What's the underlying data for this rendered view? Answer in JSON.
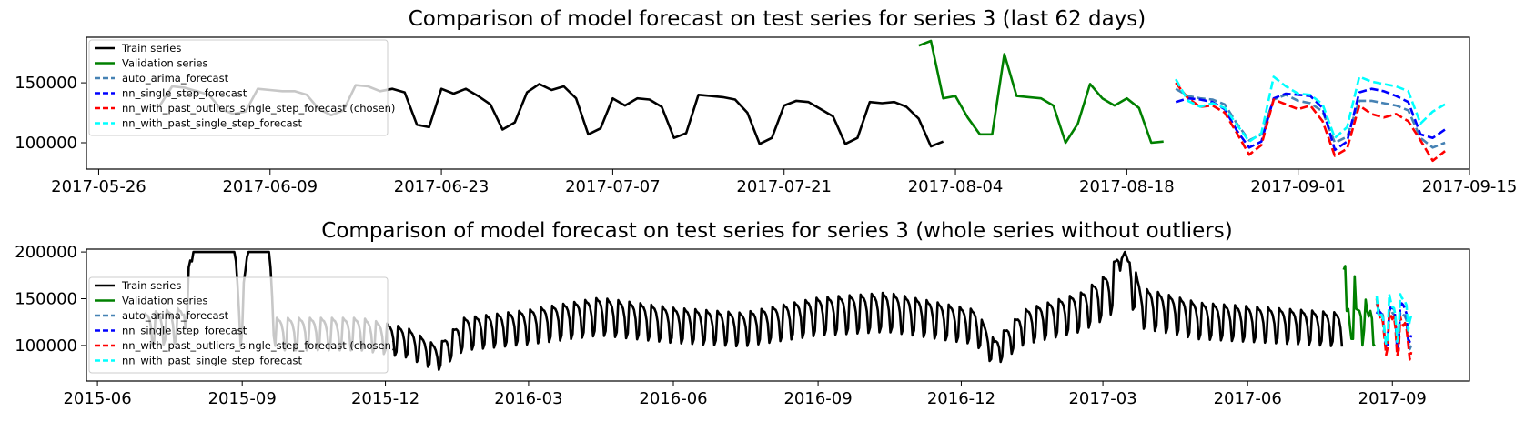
{
  "chart_data": [
    {
      "type": "line",
      "title": "Comparison of model forecast on test series for series 3 (last 62 days)",
      "xlabel": "",
      "ylabel": "",
      "xlim": [
        "2017-05-25",
        "2017-09-15"
      ],
      "ylim": [
        78000,
        188000
      ],
      "x_ticks": [
        "2017-05-26",
        "2017-06-09",
        "2017-06-23",
        "2017-07-07",
        "2017-07-21",
        "2017-08-04",
        "2017-08-18",
        "2017-09-01",
        "2017-09-15"
      ],
      "y_ticks": [
        100000,
        150000
      ],
      "y_tick_labels": [
        "100000",
        "150000"
      ],
      "legend": {
        "placement": "upper-left",
        "entries": [
          {
            "label": "Train series",
            "color": "#000000",
            "style": "solid"
          },
          {
            "label": "Validation series",
            "color": "#008000",
            "style": "solid"
          },
          {
            "label": "auto_arima_forecast",
            "color": "#4682b4",
            "style": "dashed"
          },
          {
            "label": "nn_single_step_forecast",
            "color": "#0000ff",
            "style": "dashed"
          },
          {
            "label": "nn_with_past_outliers_single_step_forecast (chosen)",
            "color": "#ff0000",
            "style": "dashed"
          },
          {
            "label": "nn_with_past_single_step_forecast",
            "color": "#00ffff",
            "style": "dashed"
          }
        ]
      },
      "series": [
        {
          "name": "Train series",
          "color": "#000000",
          "style": "solid",
          "start": "2017-05-31",
          "values": [
            131000,
            147000,
            146000,
            143000,
            140000,
            128000,
            124000,
            126000,
            145000,
            144000,
            143000,
            143000,
            140000,
            128000,
            123000,
            127000,
            148000,
            147000,
            143000,
            145000,
            142000,
            115000,
            113000,
            145000,
            141000,
            145000,
            139000,
            132000,
            111000,
            117000,
            142000,
            149000,
            144000,
            147000,
            137000,
            107000,
            112000,
            137000,
            131000,
            137000,
            136000,
            130000,
            104000,
            108000,
            140000,
            139000,
            138000,
            136000,
            125000,
            99000,
            104000,
            131000,
            135000,
            134000,
            128000,
            122000,
            99000,
            104000,
            134000,
            133000,
            134000,
            130000,
            120000,
            97000,
            101000
          ]
        },
        {
          "name": "Validation series",
          "color": "#008000",
          "style": "solid",
          "start": "2017-08-01",
          "values": [
            181000,
            185000,
            137000,
            139000,
            121000,
            107000,
            107000,
            174000,
            139000,
            138000,
            137000,
            131000,
            100000,
            116000,
            149000,
            137000,
            131000,
            137000,
            129000,
            100000,
            101000
          ]
        },
        {
          "name": "auto_arima_forecast",
          "color": "#4682b4",
          "style": "dashed",
          "start": "2017-08-22",
          "values": [
            145000,
            139000,
            137000,
            136000,
            132000,
            116000,
            102000,
            107000,
            136000,
            140000,
            135000,
            133000,
            126000,
            100000,
            105000,
            135000,
            135000,
            133000,
            131000,
            127000,
            104000,
            96000,
            100000
          ]
        },
        {
          "name": "nn_single_step_forecast",
          "color": "#0000ff",
          "style": "dashed",
          "start": "2017-08-22",
          "values": [
            134000,
            137000,
            136000,
            134000,
            128000,
            110000,
            96000,
            101000,
            137000,
            141000,
            140000,
            139000,
            129000,
            94000,
            101000,
            142000,
            145000,
            143000,
            139000,
            134000,
            107000,
            104000,
            111000
          ]
        },
        {
          "name": "nn_with_past_outliers_single_step_forecast (chosen)",
          "color": "#ff0000",
          "style": "dashed",
          "start": "2017-08-22",
          "values": [
            150000,
            137000,
            130000,
            131000,
            125000,
            108000,
            90000,
            98000,
            136000,
            132000,
            128000,
            131000,
            118000,
            89000,
            95000,
            131000,
            124000,
            121000,
            124000,
            118000,
            102000,
            85000,
            93000
          ]
        },
        {
          "name": "nn_with_past_single_step_forecast",
          "color": "#00ffff",
          "style": "dashed",
          "start": "2017-08-22",
          "values": [
            153000,
            135000,
            130000,
            133000,
            129000,
            115000,
            101000,
            108000,
            155000,
            147000,
            141000,
            140000,
            132000,
            104000,
            113000,
            155000,
            151000,
            149000,
            147000,
            143000,
            116000,
            126000,
            132000
          ]
        }
      ]
    },
    {
      "type": "line",
      "title": "Comparison of model forecast on test series for series 3 (whole series without outliers)",
      "xlabel": "",
      "ylabel": "",
      "xlim": [
        "2015-05-25",
        "2017-10-20"
      ],
      "ylim": [
        62000,
        203000
      ],
      "x_ticks": [
        "2015-06",
        "2015-09",
        "2015-12",
        "2016-03",
        "2016-06",
        "2016-09",
        "2016-12",
        "2017-03",
        "2017-06",
        "2017-09"
      ],
      "y_ticks": [
        100000,
        150000,
        200000
      ],
      "y_tick_labels": [
        "100000",
        "150000",
        "200000"
      ],
      "legend": {
        "placement": "center-left",
        "entries": [
          {
            "label": "Train series",
            "color": "#000000",
            "style": "solid"
          },
          {
            "label": "Validation series",
            "color": "#008000",
            "style": "solid"
          },
          {
            "label": "auto_arima_forecast",
            "color": "#4682b4",
            "style": "dashed"
          },
          {
            "label": "nn_single_step_forecast",
            "color": "#0000ff",
            "style": "dashed"
          },
          {
            "label": "nn_with_past_outliers_single_step_forecast (chosen)",
            "color": "#ff0000",
            "style": "dashed"
          },
          {
            "label": "nn_with_past_single_step_forecast",
            "color": "#00ffff",
            "style": "dashed"
          }
        ]
      },
      "series": [
        {
          "name": "Train series",
          "color": "#000000",
          "style": "solid",
          "start": "2015-07-01",
          "end": "2017-07-31",
          "weekly_pattern": [
            1.08,
            1.06,
            1.05,
            1.02,
            0.95,
            0.79,
            0.83
          ],
          "level_knots": [
            [
              "2015-07-01",
              125000
            ],
            [
              "2015-07-25",
              130000
            ],
            [
              "2015-08-01",
              200000
            ],
            [
              "2015-08-27",
              200000
            ],
            [
              "2015-08-31",
              125000
            ],
            [
              "2015-09-05",
              200000
            ],
            [
              "2015-09-18",
              200000
            ],
            [
              "2015-09-22",
              120000
            ],
            [
              "2015-11-15",
              120000
            ],
            [
              "2015-12-15",
              110000
            ],
            [
              "2016-01-03",
              92000
            ],
            [
              "2016-01-20",
              120000
            ],
            [
              "2016-03-01",
              128000
            ],
            [
              "2016-04-15",
              140000
            ],
            [
              "2016-06-01",
              130000
            ],
            [
              "2016-07-15",
              125000
            ],
            [
              "2016-09-01",
              140000
            ],
            [
              "2016-10-15",
              145000
            ],
            [
              "2016-12-10",
              128000
            ],
            [
              "2016-12-22",
              98000
            ],
            [
              "2017-01-10",
              128000
            ],
            [
              "2017-02-15",
              145000
            ],
            [
              "2017-03-05",
              165000
            ],
            [
              "2017-03-15",
              200000
            ],
            [
              "2017-03-25",
              150000
            ],
            [
              "2017-05-01",
              135000
            ],
            [
              "2017-07-31",
              125000
            ]
          ]
        },
        {
          "name": "Validation series",
          "color": "#008000",
          "style": "solid",
          "start": "2017-08-01",
          "values": [
            181000,
            185000,
            137000,
            139000,
            121000,
            107000,
            107000,
            174000,
            139000,
            138000,
            137000,
            131000,
            100000,
            116000,
            149000,
            137000,
            131000,
            137000,
            129000,
            100000,
            101000
          ]
        },
        {
          "name": "auto_arima_forecast",
          "color": "#4682b4",
          "style": "dashed",
          "start": "2017-08-22",
          "values": [
            145000,
            139000,
            137000,
            136000,
            132000,
            116000,
            102000,
            107000,
            136000,
            140000,
            135000,
            133000,
            126000,
            100000,
            105000,
            135000,
            135000,
            133000,
            131000,
            127000,
            104000,
            96000,
            100000
          ]
        },
        {
          "name": "nn_single_step_forecast",
          "color": "#0000ff",
          "style": "dashed",
          "start": "2017-08-22",
          "values": [
            134000,
            137000,
            136000,
            134000,
            128000,
            110000,
            96000,
            101000,
            137000,
            141000,
            140000,
            139000,
            129000,
            94000,
            101000,
            142000,
            145000,
            143000,
            139000,
            134000,
            107000,
            104000,
            111000
          ]
        },
        {
          "name": "nn_with_past_outliers_single_step_forecast (chosen)",
          "color": "#ff0000",
          "style": "dashed",
          "start": "2017-08-22",
          "values": [
            150000,
            137000,
            130000,
            131000,
            125000,
            108000,
            90000,
            98000,
            136000,
            132000,
            128000,
            131000,
            118000,
            89000,
            95000,
            131000,
            124000,
            121000,
            124000,
            118000,
            102000,
            85000,
            93000
          ]
        },
        {
          "name": "nn_with_past_single_step_forecast",
          "color": "#00ffff",
          "style": "dashed",
          "start": "2017-08-22",
          "values": [
            153000,
            135000,
            130000,
            133000,
            129000,
            115000,
            101000,
            108000,
            155000,
            147000,
            141000,
            140000,
            132000,
            104000,
            113000,
            155000,
            151000,
            149000,
            147000,
            143000,
            116000,
            126000,
            132000
          ]
        }
      ]
    }
  ]
}
